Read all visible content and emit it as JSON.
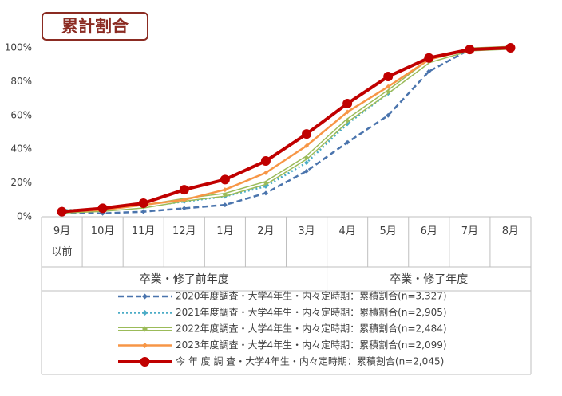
{
  "chart_data": {
    "type": "line",
    "title": "累計割合",
    "categories": [
      "9月\n以前",
      "10月",
      "11月",
      "12月",
      "1月",
      "2月",
      "3月",
      "4月",
      "5月",
      "6月",
      "7月",
      "8月"
    ],
    "x_groups": [
      {
        "label": "卒業・修了前年度",
        "span": 7
      },
      {
        "label": "卒業・修了年度",
        "span": 5
      }
    ],
    "ylim": [
      0,
      100
    ],
    "yticks": [
      {
        "value": 0,
        "label": "0%"
      },
      {
        "value": 20,
        "label": "20%"
      },
      {
        "value": 40,
        "label": "40%"
      },
      {
        "value": 60,
        "label": "60%"
      },
      {
        "value": 80,
        "label": "80%"
      },
      {
        "value": 100,
        "label": "100%"
      }
    ],
    "grid": false,
    "series": [
      {
        "name": "2020年度調査・大学4年生・内々定時期：累積割合(n=3,327)",
        "color": "#4a74ad",
        "style": "dashed",
        "marker": "diamond",
        "values": [
          2,
          2,
          3,
          5,
          7,
          14,
          27,
          44,
          60,
          86,
          99,
          100
        ]
      },
      {
        "name": "2021年度調査・大学4年生・内々定時期：累積割合(n=2,905)",
        "color": "#4bacc6",
        "style": "dotted",
        "marker": "diamond",
        "values": [
          4,
          4,
          6,
          9,
          12,
          18,
          32,
          55,
          73,
          92,
          99,
          100
        ]
      },
      {
        "name": "2022年度調査・大学4年生・内々定時期：累積割合(n=2,484)",
        "color": "#9bbb59",
        "style": "double",
        "marker": "diamond",
        "values": [
          3,
          4,
          6,
          10,
          13,
          20,
          35,
          57,
          74,
          92,
          99,
          100
        ]
      },
      {
        "name": "2023年度調査・大学4年生・内々定時期：累積割合(n=2,099)",
        "color": "#f79646",
        "style": "solid",
        "marker": "diamond",
        "values": [
          3,
          4,
          7,
          10,
          16,
          26,
          42,
          62,
          77,
          93,
          99,
          100
        ]
      },
      {
        "name": "今 年 度 調 査・大学4年生・内々定時期：累積割合(n=2,045)",
        "color": "#c00000",
        "style": "bold",
        "marker": "circle",
        "values": [
          3,
          5,
          8,
          16,
          22,
          33,
          49,
          67,
          83,
          94,
          99,
          100
        ]
      }
    ]
  }
}
